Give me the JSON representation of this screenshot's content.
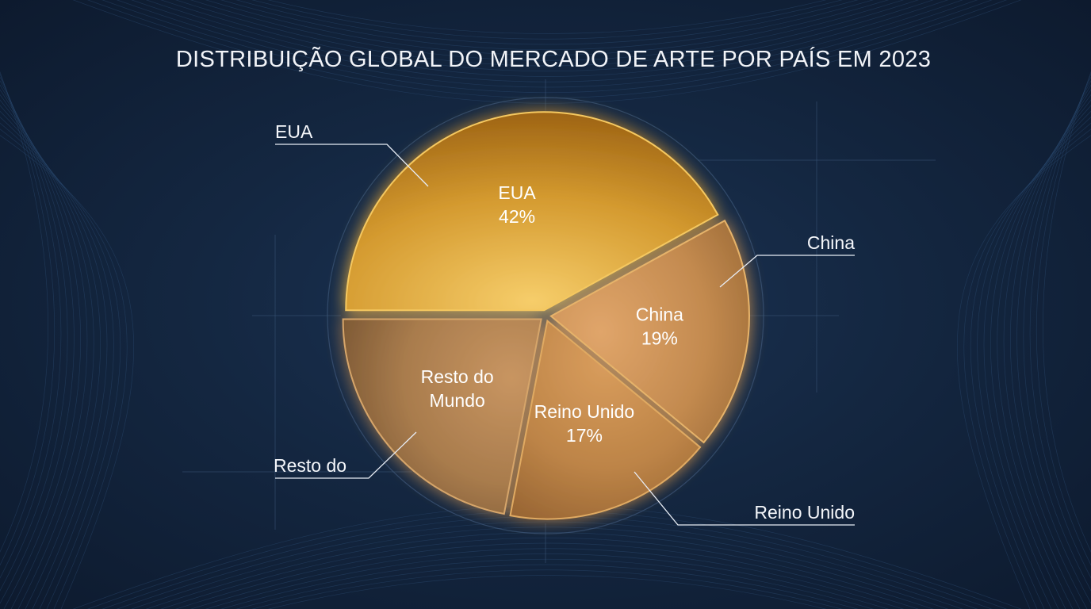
{
  "chart_data": {
    "type": "pie",
    "title": "DISTRIBUIÇÃO GLOBAL DO MERCADO DE ARTE POR PAÍS EM 2023",
    "slices": [
      {
        "inner_lines": [
          "EUA",
          "42%"
        ],
        "callout": "EUA",
        "value": 42
      },
      {
        "inner_lines": [
          "China",
          "19%"
        ],
        "callout": "China",
        "value": 19
      },
      {
        "inner_lines": [
          "Reino Unido",
          "17%"
        ],
        "callout": "Reino Unido",
        "value": 17
      },
      {
        "inner_lines": [
          "Resto do",
          "Mundo"
        ],
        "callout": "Resto do",
        "value": 22
      }
    ],
    "legend": "none",
    "grid": false
  },
  "colors": {
    "background": "#142741",
    "slice_eua": "#d9a233",
    "slice_china": "#c98e4f",
    "slice_reino_unido": "#c2874a",
    "slice_resto": "#a57c4e",
    "glow": "#f2c15a",
    "separator": "#0f1b2d"
  }
}
